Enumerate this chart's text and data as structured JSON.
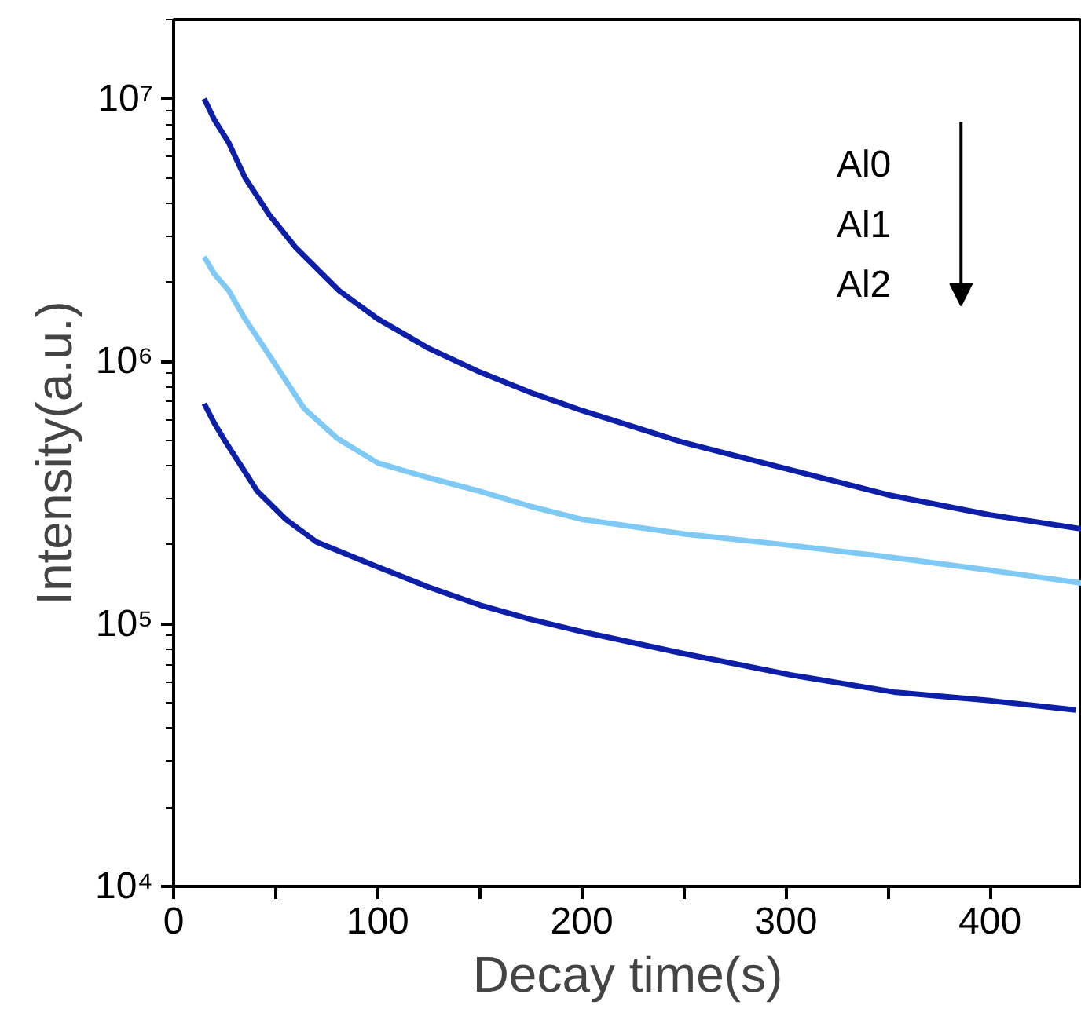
{
  "chart_data": {
    "type": "line",
    "xlabel": "Decay time(s)",
    "ylabel": "Intensity(a.u.)",
    "annotations": [
      "Al0",
      "Al1",
      "Al2"
    ],
    "xlim": [
      0,
      445
    ],
    "xticks": [
      0,
      {
        "value": 50,
        "label": null
      },
      100,
      {
        "value": 150,
        "label": null
      },
      200,
      {
        "value": 250,
        "label": null
      },
      300,
      {
        "value": 350,
        "label": null
      },
      400
    ],
    "ylim": [
      10000,
      20000000
    ],
    "yticks": [
      {
        "value": 10000,
        "label": "10⁴"
      },
      {
        "value": 100000,
        "label": "10⁵"
      },
      {
        "value": 1000000,
        "label": "10⁶"
      },
      {
        "value": 10000000,
        "label": "10⁷"
      }
    ],
    "log": "y",
    "grid": false,
    "line_style": "solid",
    "marker": "none",
    "series": [
      {
        "color": "#0d1fa8",
        "x": [
          15,
          20,
          27,
          35,
          47,
          60,
          81,
          100,
          125,
          150,
          175,
          200,
          250,
          300,
          350,
          400,
          445
        ],
        "values": [
          10000000,
          8300000,
          6800000,
          5000000,
          3600000,
          2700000,
          1860000,
          1450000,
          1120000,
          910000,
          760000,
          650000,
          490000,
          390000,
          310000,
          260000,
          230000
        ]
      },
      {
        "color": "#7fcaf5",
        "x": [
          15,
          20,
          27,
          35,
          47,
          64,
          80,
          100,
          125,
          150,
          175,
          200,
          250,
          300,
          350,
          400,
          445
        ],
        "values": [
          2500000,
          2150000,
          1860000,
          1450000,
          1050000,
          660000,
          510000,
          410000,
          360000,
          320000,
          280000,
          250000,
          220000,
          200000,
          180000,
          160000,
          143000
        ]
      },
      {
        "color": "#0d1fa8",
        "x": [
          15,
          20,
          25,
          33,
          41,
          55,
          70,
          99,
          125,
          150,
          175,
          201,
          250,
          302,
          353,
          400,
          442
        ],
        "values": [
          690000,
          580000,
          500000,
          400000,
          320000,
          250000,
          205000,
          166000,
          138000,
          118000,
          104000,
          93000,
          77000,
          64000,
          55000,
          51000,
          47000
        ]
      }
    ]
  }
}
